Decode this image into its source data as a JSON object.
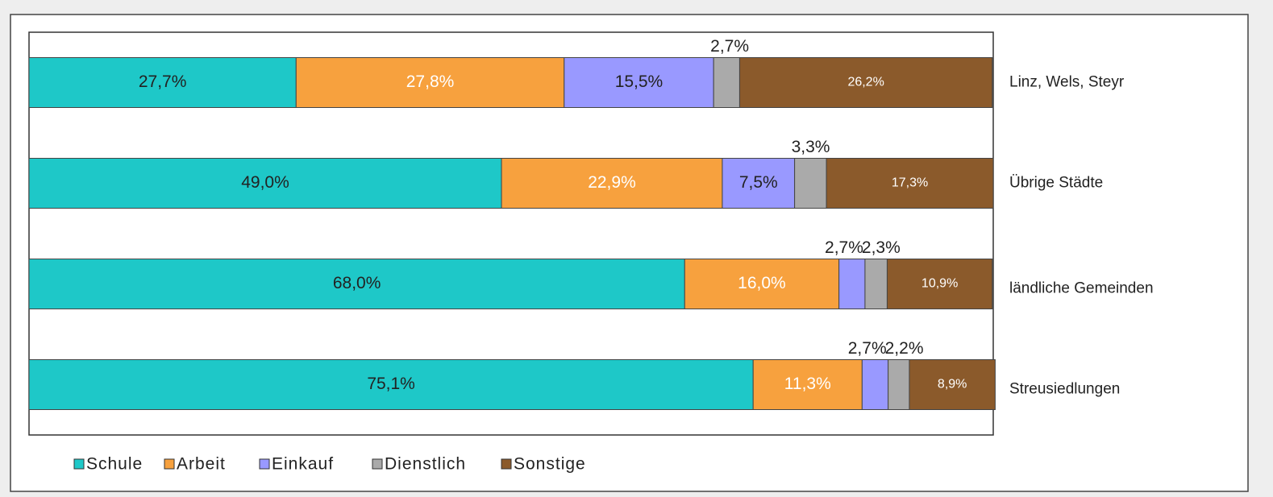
{
  "chart_data": {
    "type": "stacked_bar_horizontal",
    "categories": [
      "Linz, Wels, Steyr",
      "Übrige Städte",
      "ländliche Gemeinden",
      "Streusiedlungen"
    ],
    "xlim": [
      0,
      100
    ],
    "series": [
      {
        "name": "Schule",
        "color": "#1ec8c8",
        "values": [
          27.7,
          49.0,
          68.0,
          75.1
        ],
        "value_labels": [
          "27,7%",
          "49,0%",
          "68,0%",
          "75,1%"
        ]
      },
      {
        "name": "Arbeit",
        "color": "#f7a13e",
        "values": [
          27.8,
          22.9,
          16.0,
          11.3
        ],
        "value_labels": [
          "27,8%",
          "22,9%",
          "16,0%",
          "11,3%"
        ]
      },
      {
        "name": "Einkauf",
        "color": "#9999ff",
        "values": [
          15.5,
          7.5,
          2.7,
          2.7
        ],
        "value_labels": [
          "15,5%",
          "7,5%",
          "2,7%",
          "2,7%"
        ]
      },
      {
        "name": "Dienstlich",
        "color": "#aaaaaa",
        "values": [
          2.7,
          3.3,
          2.3,
          2.2
        ],
        "value_labels": [
          "2,7%",
          "3,3%",
          "2,3%",
          "2,2%"
        ]
      },
      {
        "name": "Sonstige",
        "color": "#8b5a2b",
        "values": [
          26.2,
          17.3,
          10.9,
          8.9
        ],
        "value_labels": [
          "26,2%",
          "17,3%",
          "10,9%",
          "8,9%"
        ]
      }
    ],
    "legend": "bottom"
  }
}
